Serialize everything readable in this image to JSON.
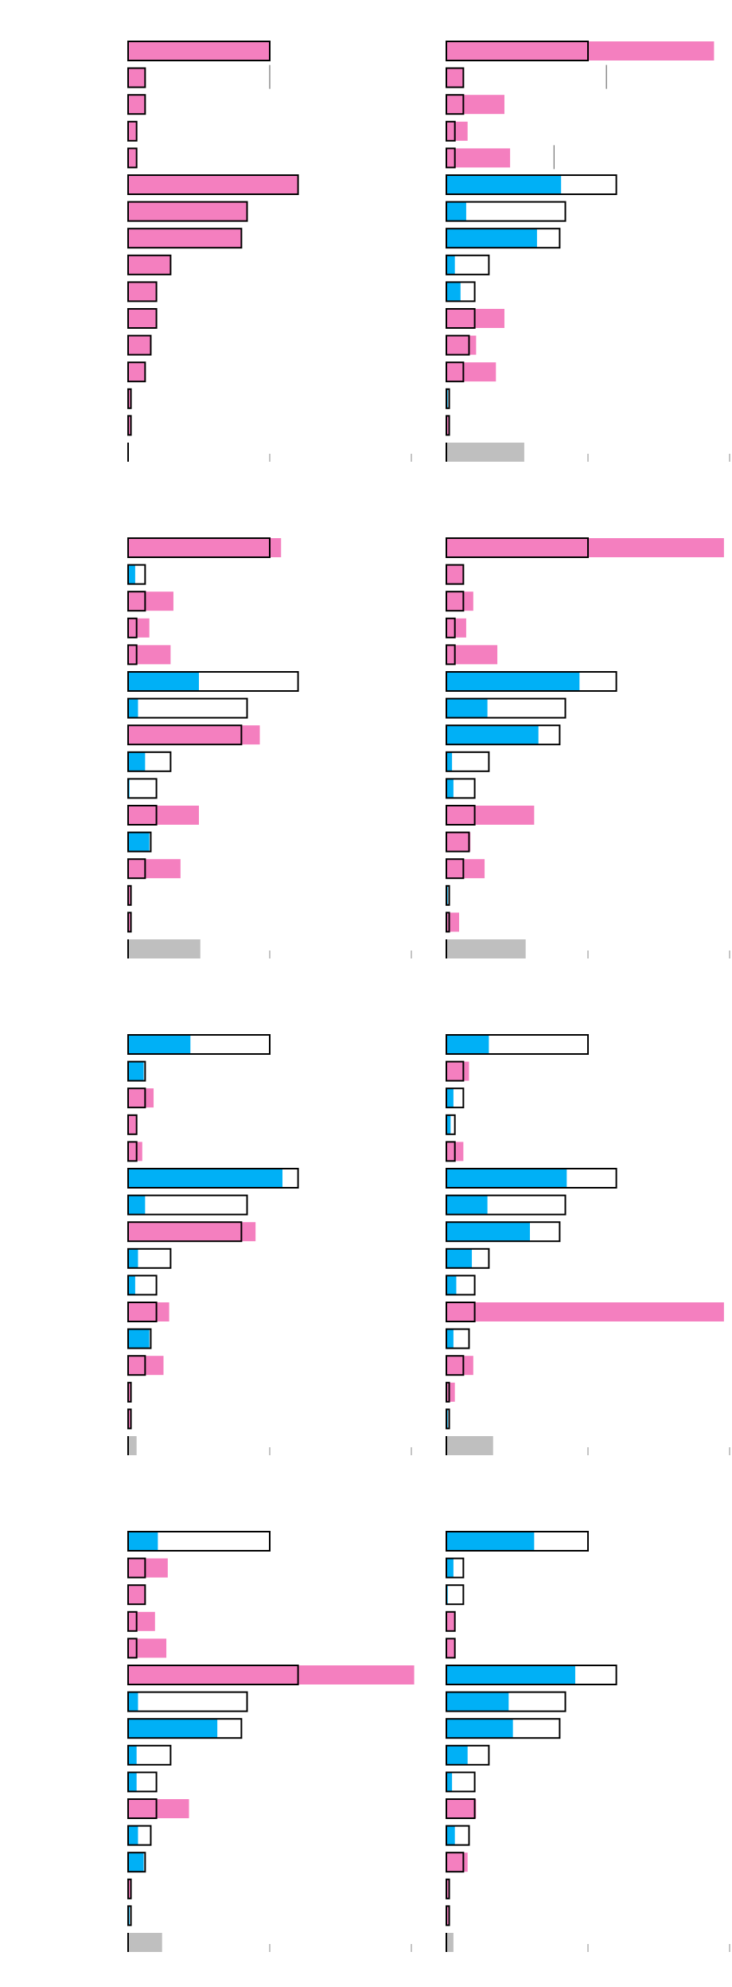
{
  "colors": {
    "over": "#f47fbf",
    "under": "#00b0f6",
    "outline": "#000000",
    "last_row": "#bfbfbf",
    "tick": "#888888"
  },
  "chart_data": [
    {
      "panel": "p1",
      "type": "bar",
      "xlim": [
        0,
        200
      ],
      "reference": [
        100,
        12,
        12,
        6,
        6,
        120,
        84,
        80,
        30,
        20,
        20,
        16,
        12,
        2,
        2,
        0
      ],
      "values": [
        100,
        12,
        12,
        6,
        6,
        120,
        84,
        80,
        30,
        20,
        20,
        16,
        12,
        2,
        2,
        0
      ],
      "markers": [
        {
          "row": 1,
          "value": 100
        }
      ]
    },
    {
      "panel": "p2",
      "type": "bar",
      "xlim": [
        0,
        200
      ],
      "reference": [
        100,
        12,
        12,
        6,
        6,
        120,
        84,
        80,
        30,
        20,
        20,
        16,
        12,
        2,
        2,
        0
      ],
      "values": [
        189,
        12,
        41,
        15,
        45,
        81,
        14,
        64,
        6,
        10,
        41,
        21,
        35,
        1,
        2,
        55
      ],
      "markers": [
        {
          "row": 1,
          "value": 113
        },
        {
          "row": 4,
          "value": 76
        }
      ]
    },
    {
      "panel": "p3",
      "type": "bar",
      "xlim": [
        0,
        200
      ],
      "reference": [
        100,
        12,
        12,
        6,
        6,
        120,
        84,
        80,
        30,
        20,
        20,
        16,
        12,
        2,
        2,
        0
      ],
      "values": [
        108,
        5,
        32,
        15,
        30,
        50,
        7,
        93,
        12,
        1,
        50,
        15,
        37,
        2,
        2,
        51
      ],
      "markers": []
    },
    {
      "panel": "p4",
      "type": "bar",
      "xlim": [
        0,
        200
      ],
      "reference": [
        100,
        12,
        12,
        6,
        6,
        120,
        84,
        80,
        30,
        20,
        20,
        16,
        12,
        2,
        2,
        0
      ],
      "values": [
        196,
        12,
        19,
        14,
        36,
        94,
        29,
        65,
        4,
        5,
        62,
        17,
        27,
        1,
        9,
        56
      ],
      "markers": []
    },
    {
      "panel": "p5",
      "type": "bar",
      "xlim": [
        0,
        200
      ],
      "reference": [
        100,
        12,
        12,
        6,
        6,
        120,
        84,
        80,
        30,
        20,
        20,
        16,
        12,
        2,
        2,
        0
      ],
      "values": [
        44,
        11,
        18,
        6,
        10,
        109,
        12,
        90,
        7,
        5,
        29,
        15,
        25,
        2,
        2,
        6
      ],
      "markers": []
    },
    {
      "panel": "p6",
      "type": "bar",
      "xlim": [
        0,
        200
      ],
      "reference": [
        100,
        12,
        12,
        6,
        6,
        120,
        84,
        80,
        30,
        20,
        20,
        16,
        12,
        2,
        2,
        0
      ],
      "values": [
        30,
        16,
        5,
        3,
        12,
        85,
        29,
        59,
        18,
        7,
        196,
        5,
        19,
        6,
        1,
        33
      ],
      "markers": []
    },
    {
      "panel": "p7",
      "type": "bar",
      "xlim": [
        0,
        200
      ],
      "reference": [
        100,
        12,
        12,
        6,
        6,
        120,
        84,
        80,
        30,
        20,
        20,
        16,
        12,
        2,
        2,
        0
      ],
      "values": [
        21,
        28,
        12,
        19,
        27,
        202,
        7,
        63,
        6,
        6,
        43,
        7,
        11,
        2,
        1,
        24
      ],
      "markers": []
    },
    {
      "panel": "p8",
      "type": "bar",
      "xlim": [
        0,
        200
      ],
      "reference": [
        100,
        12,
        12,
        6,
        6,
        120,
        84,
        80,
        30,
        20,
        20,
        16,
        12,
        2,
        2,
        0
      ],
      "values": [
        62,
        5,
        1,
        6,
        6,
        91,
        44,
        47,
        15,
        4,
        21,
        6,
        15,
        2,
        2,
        5
      ],
      "markers": []
    }
  ]
}
